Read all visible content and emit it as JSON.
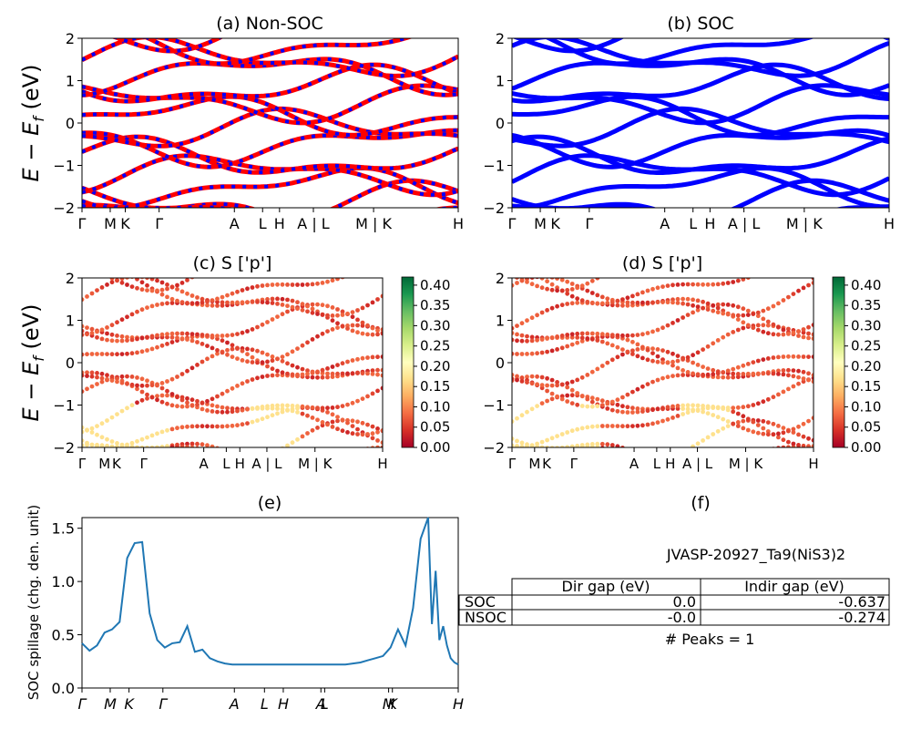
{
  "panels": {
    "a": {
      "title": "(a) Non-SOC"
    },
    "b": {
      "title": "(b) SOC"
    },
    "c": {
      "title": "(c)  S ['p']"
    },
    "d": {
      "title": "(d) S ['p']"
    },
    "e": {
      "title": "(e)"
    },
    "f": {
      "title": "(f)"
    }
  },
  "band_ylabel": "E − E_f (eV)",
  "band_yticks": [
    "2",
    "1",
    "0",
    "−1",
    "−2"
  ],
  "kpath_labels": [
    "Γ",
    "M",
    "K",
    "Γ",
    "A",
    "L",
    "H",
    "A | L",
    "M | K",
    "H"
  ],
  "spillage_kpath_labels": [
    "Γ",
    "M",
    "K",
    "Γ",
    "A",
    "L",
    "H",
    "A",
    "L",
    "M",
    "K",
    "H"
  ],
  "colorbar_c_ticks": [
    "0.40",
    "0.35",
    "0.30",
    "0.25",
    "0.20",
    "0.15",
    "0.10",
    "0.05",
    "0.00"
  ],
  "colorbar_d_ticks": [
    "0.40",
    "0.35",
    "0.30",
    "0.25",
    "0.20",
    "0.15",
    "0.10",
    "0.05",
    "0.00"
  ],
  "colors": {
    "nonsoc_band": "#ff0000",
    "nonsoc_dash": "#0000ff",
    "soc_band": "#0000ff",
    "spillage_line": "#1f77b4"
  },
  "table": {
    "caption": "JVASP-20927_Ta9(NiS3)2",
    "headers": [
      "Dir gap (eV)",
      "Indir gap (eV)"
    ],
    "rows": [
      {
        "label": "SOC",
        "dir": "0.0",
        "indir": "-0.637"
      },
      {
        "label": "NSOC",
        "dir": "-0.0",
        "indir": "-0.274"
      }
    ],
    "peaks": "# Peaks = 1"
  },
  "chart_data": [
    {
      "type": "line",
      "title": "(e)",
      "ylabel": "SOC spillage (chg. den. unit)",
      "xlabel": "",
      "ylim": [
        0,
        1.6
      ],
      "yticks": [
        "0.0",
        "0.5",
        "1.0",
        "1.5"
      ],
      "x": [
        0,
        2,
        4,
        6,
        8,
        10,
        12,
        14,
        16,
        18,
        20,
        22,
        24,
        26,
        28,
        30,
        32,
        33,
        34,
        36,
        38,
        40,
        42,
        44,
        46,
        48,
        50,
        52,
        54,
        56,
        58,
        60,
        62,
        64,
        66,
        68,
        70,
        72,
        74,
        76,
        78,
        80,
        82,
        84,
        86,
        88,
        90,
        92,
        93,
        94,
        95,
        96,
        97,
        98,
        99,
        100
      ],
      "y": [
        0.42,
        0.35,
        0.4,
        0.52,
        0.55,
        0.62,
        1.22,
        1.36,
        1.37,
        0.7,
        0.45,
        0.38,
        0.42,
        0.43,
        0.58,
        0.34,
        0.36,
        0.32,
        0.28,
        0.25,
        0.23,
        0.22,
        0.22,
        0.22,
        0.22,
        0.22,
        0.22,
        0.22,
        0.22,
        0.22,
        0.22,
        0.22,
        0.22,
        0.22,
        0.22,
        0.22,
        0.22,
        0.23,
        0.24,
        0.26,
        0.28,
        0.3,
        0.38,
        0.55,
        0.4,
        0.75,
        1.4,
        1.6,
        0.6,
        1.1,
        0.45,
        0.58,
        0.4,
        0.28,
        0.24,
        0.22
      ]
    }
  ]
}
